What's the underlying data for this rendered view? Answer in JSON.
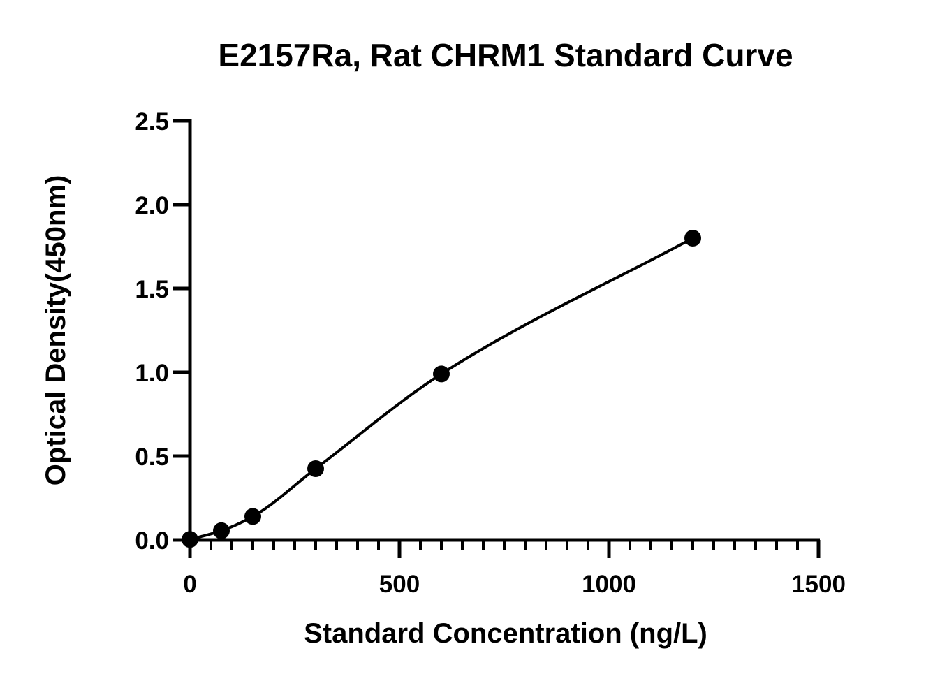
{
  "chart_data": {
    "type": "scatter",
    "title": "E2157Ra, Rat CHRM1 Standard Curve",
    "xlabel": "Standard Concentration (ng/L)",
    "ylabel": "Optical Density(450nm)",
    "xlim": [
      0,
      1500
    ],
    "ylim": [
      0,
      2.5
    ],
    "x_ticks": [
      "0",
      "500",
      "1000",
      "1500"
    ],
    "y_ticks": [
      "0.0",
      "0.5",
      "1.0",
      "1.5",
      "2.0",
      "2.5"
    ],
    "x_tick_values": [
      0,
      500,
      1000,
      1500
    ],
    "y_tick_values": [
      0,
      0.5,
      1.0,
      1.5,
      2.0,
      2.5
    ],
    "x_minor_step": 50,
    "grid": false,
    "legend": "none",
    "series": [
      {
        "x": [
          0,
          75,
          150,
          300,
          600,
          1200
        ],
        "y": [
          0.003,
          0.055,
          0.14,
          0.425,
          0.99,
          1.8
        ],
        "marker": "circle",
        "color": "#000000",
        "fit_curve": true
      }
    ]
  }
}
